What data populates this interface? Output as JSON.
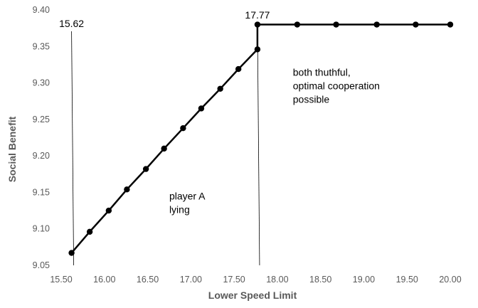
{
  "chart_data": {
    "type": "line",
    "title": "",
    "xlabel": "Lower Speed Limit",
    "ylabel": "Social Benefit",
    "xlim": [
      15.5,
      20.0
    ],
    "ylim": [
      9.05,
      9.4
    ],
    "x_ticks": [
      "15.50",
      "16.00",
      "16.50",
      "17.00",
      "17.50",
      "18.00",
      "18.50",
      "19.00",
      "19.50",
      "20.00"
    ],
    "y_ticks": [
      "9.05",
      "9.10",
      "9.15",
      "9.20",
      "9.25",
      "9.30",
      "9.35",
      "9.40"
    ],
    "grid": false,
    "legend": "none",
    "series": [
      {
        "color": "#000000",
        "x": [
          15.62,
          15.83,
          16.05,
          16.26,
          16.48,
          16.69,
          16.91,
          17.12,
          17.34,
          17.55,
          17.77,
          17.77,
          18.23,
          18.68,
          19.15,
          19.6,
          20.0
        ],
        "y": [
          9.067,
          9.096,
          9.125,
          9.154,
          9.182,
          9.21,
          9.238,
          9.265,
          9.292,
          9.319,
          9.346,
          9.38,
          9.38,
          9.38,
          9.38,
          9.38,
          9.38
        ]
      }
    ],
    "reference_lines": [
      {
        "label": "15.62",
        "x": 15.62
      },
      {
        "label": "17.77",
        "x": 17.77
      }
    ],
    "annotations": [
      {
        "lines": [
          "player A",
          "lying"
        ],
        "x": 16.75,
        "y": 9.14
      },
      {
        "lines": [
          "both thuthful,",
          "optimal cooperation",
          "possible"
        ],
        "x": 18.18,
        "y": 9.31
      }
    ]
  }
}
